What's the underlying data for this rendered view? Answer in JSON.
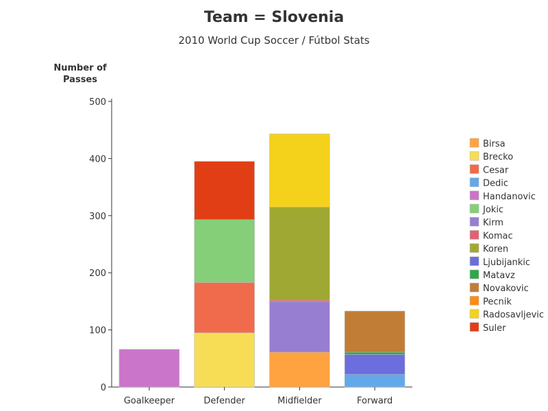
{
  "chart_data": {
    "type": "bar",
    "stacked": true,
    "title": "Team = Slovenia",
    "subtitle": "2010 World Cup Soccer / Fútbol Stats",
    "xlabel": "",
    "ylabel": "Number of Passes",
    "ylabel_lines": [
      "Number of",
      "Passes"
    ],
    "ylim": [
      0,
      500
    ],
    "yticks": [
      0,
      100,
      200,
      300,
      400,
      500
    ],
    "grid": false,
    "legend_position": "right",
    "categories": [
      "Goalkeeper",
      "Defender",
      "Midfielder",
      "Forward"
    ],
    "series": [
      {
        "name": "Birsa",
        "color": "#FFA340",
        "values": [
          0,
          0,
          61,
          0
        ]
      },
      {
        "name": "Brecko",
        "color": "#F7DC55",
        "values": [
          0,
          95,
          0,
          0
        ]
      },
      {
        "name": "Cesar",
        "color": "#F06B4B",
        "values": [
          0,
          88,
          0,
          0
        ]
      },
      {
        "name": "Dedic",
        "color": "#62A9E9",
        "values": [
          0,
          0,
          0,
          22
        ]
      },
      {
        "name": "Handanovic",
        "color": "#CA75C9",
        "values": [
          66,
          0,
          0,
          0
        ]
      },
      {
        "name": "Jokic",
        "color": "#84CF78",
        "values": [
          0,
          110,
          0,
          0
        ]
      },
      {
        "name": "Kirm",
        "color": "#977ED1",
        "values": [
          0,
          0,
          88,
          0
        ]
      },
      {
        "name": "Komac",
        "color": "#DE6371",
        "values": [
          0,
          0,
          3,
          0
        ]
      },
      {
        "name": "Koren",
        "color": "#9FA832",
        "values": [
          0,
          0,
          163,
          0
        ]
      },
      {
        "name": "Ljubijankic",
        "color": "#6B6EDC",
        "values": [
          0,
          0,
          0,
          35
        ]
      },
      {
        "name": "Matavz",
        "color": "#2FA64C",
        "values": [
          0,
          0,
          0,
          4
        ]
      },
      {
        "name": "Novakovic",
        "color": "#C17D36",
        "values": [
          0,
          0,
          0,
          72
        ]
      },
      {
        "name": "Pecnik",
        "color": "#FF8B10",
        "values": [
          0,
          0,
          0,
          0
        ]
      },
      {
        "name": "Radosavljevic",
        "color": "#F4D21C",
        "values": [
          0,
          0,
          128,
          0
        ]
      },
      {
        "name": "Suler",
        "color": "#E23E15",
        "values": [
          0,
          102,
          0,
          0
        ]
      }
    ]
  }
}
